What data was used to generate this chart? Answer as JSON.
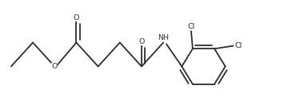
{
  "background": "#ffffff",
  "bond_color": "#2b2b3b",
  "text_color": "#2b2b3b",
  "lw": 1.3,
  "font_size": 6.8,
  "fig_width": 3.6,
  "fig_height": 1.37,
  "dpi": 100,
  "xlim": [
    0,
    9.5
  ],
  "ylim": [
    0,
    3.8
  ]
}
